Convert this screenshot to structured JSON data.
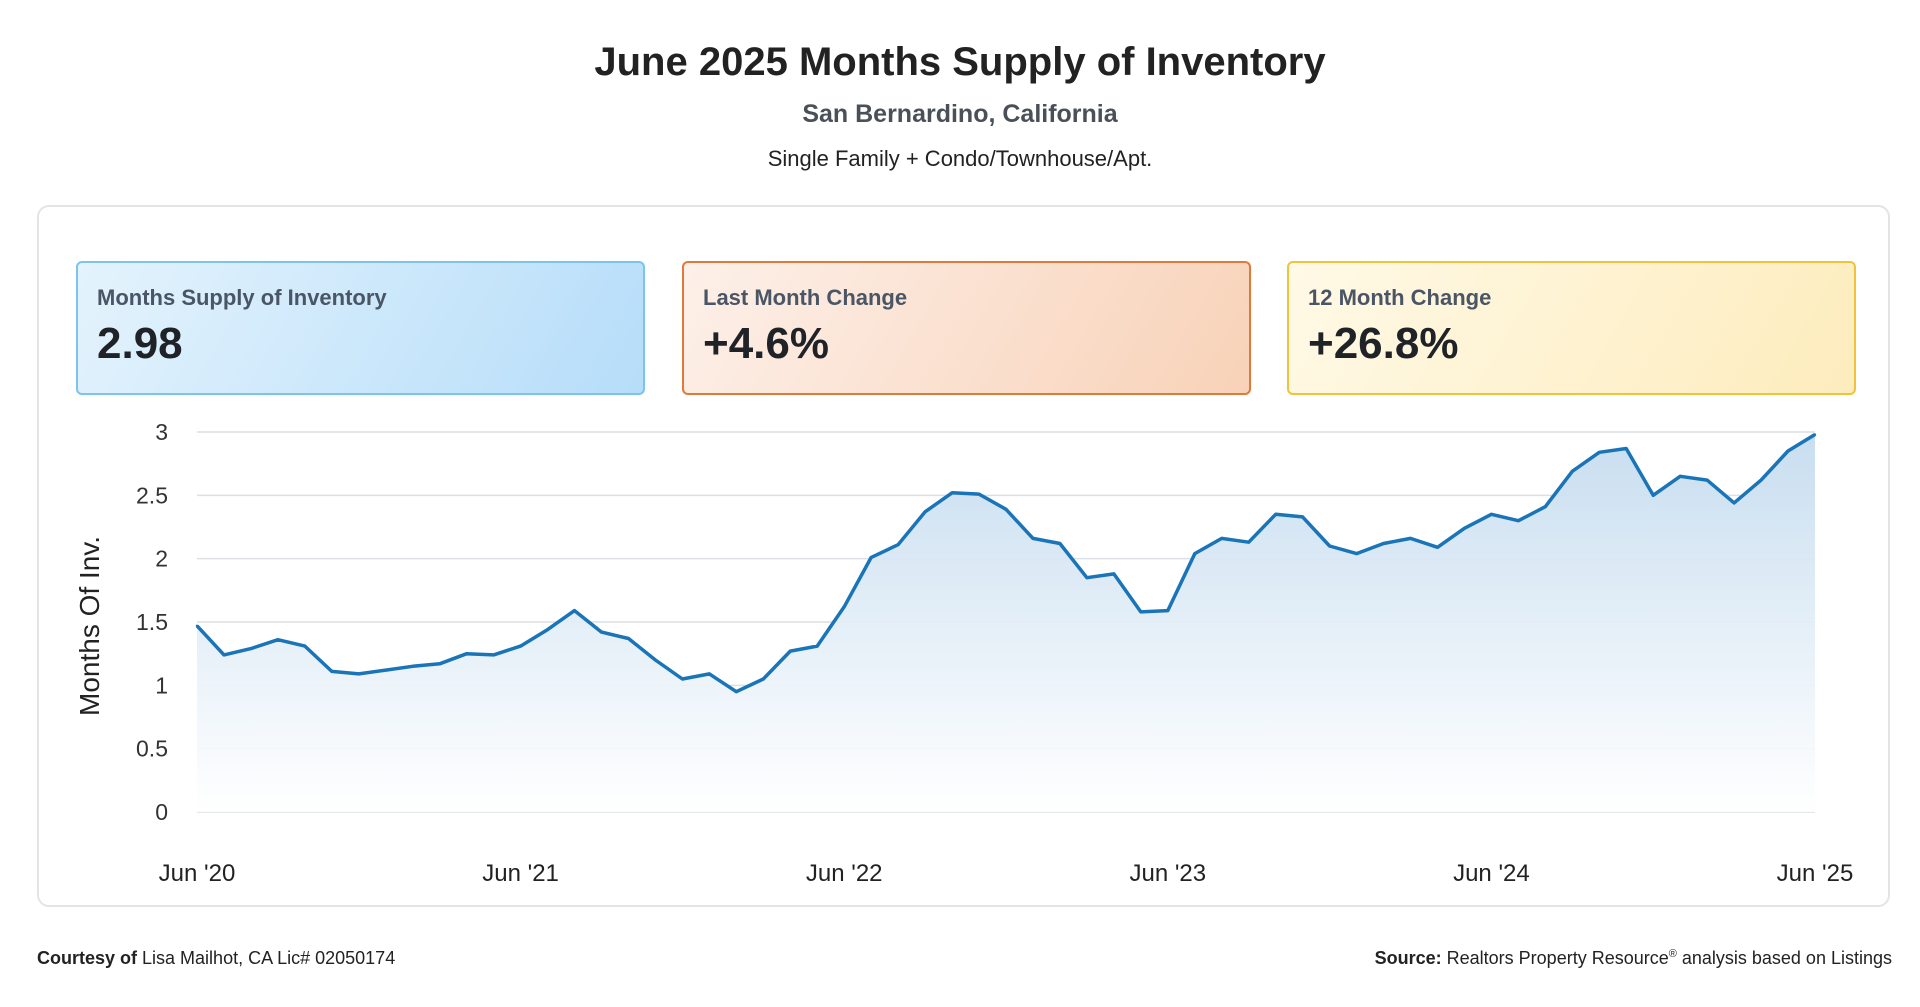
{
  "header": {
    "title": "June 2025 Months Supply of Inventory",
    "location": "San Bernardino, California",
    "property_types": "Single Family + Condo/Townhouse/Apt."
  },
  "cards": [
    {
      "label": "Months Supply of Inventory",
      "value": "2.98",
      "color": "#b6ddf9"
    },
    {
      "label": "Last Month Change",
      "value": "+4.6%",
      "color": "#f8d2b8"
    },
    {
      "label": "12 Month Change",
      "value": "+26.8%",
      "color": "#fdecbd"
    }
  ],
  "chart_data": {
    "type": "area",
    "ylabel": "Months Of Inv.",
    "ylim": [
      0,
      3
    ],
    "yticks": [
      "0",
      "0.5",
      "1",
      "1.5",
      "2",
      "2.5",
      "3"
    ],
    "xticks": [
      "Jun '20",
      "Jun '21",
      "Jun '22",
      "Jun '23",
      "Jun '24",
      "Jun '25"
    ],
    "x_start": "Jun 2020",
    "x_end": "Jun 2025",
    "grid": true,
    "line_color": "#1a74b8",
    "values": [
      1.47,
      1.24,
      1.29,
      1.36,
      1.31,
      1.11,
      1.09,
      1.12,
      1.15,
      1.17,
      1.25,
      1.24,
      1.31,
      1.44,
      1.59,
      1.42,
      1.37,
      1.2,
      1.05,
      1.09,
      0.95,
      1.05,
      1.27,
      1.31,
      1.62,
      2.01,
      2.11,
      2.37,
      2.52,
      2.51,
      2.39,
      2.16,
      2.12,
      1.85,
      1.88,
      1.58,
      1.59,
      2.04,
      2.16,
      2.13,
      2.35,
      2.33,
      2.1,
      2.04,
      2.12,
      2.16,
      2.09,
      2.24,
      2.35,
      2.3,
      2.41,
      2.69,
      2.84,
      2.87,
      2.5,
      2.65,
      2.62,
      2.44,
      2.62,
      2.85,
      2.98
    ]
  },
  "footer": {
    "courtesy_label": "Courtesy of",
    "courtesy_text": "Lisa Mailhot, CA Lic# 02050174",
    "source_label": "Source:",
    "source_text": "Realtors Property Resource",
    "source_reg": "®",
    "source_suffix": "analysis based on Listings"
  }
}
